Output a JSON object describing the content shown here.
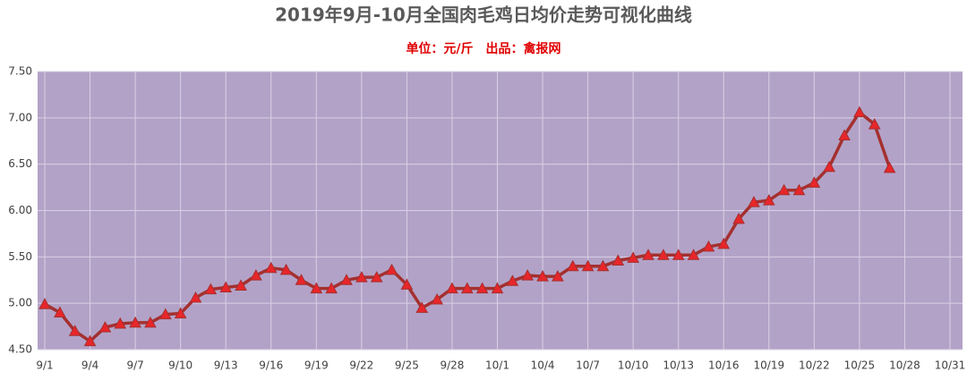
{
  "chart_data": {
    "type": "line",
    "title": "2019年9月-10月全国肉毛鸡日均价走势可视化曲线",
    "subtitle": "单位：元/斤　出品：禽报网",
    "categories": [
      "9/1",
      null,
      null,
      "9/4",
      null,
      null,
      "9/7",
      null,
      null,
      "9/10",
      null,
      null,
      "9/13",
      null,
      null,
      "9/16",
      null,
      null,
      "9/19",
      null,
      null,
      "9/22",
      null,
      null,
      "9/25",
      null,
      null,
      "9/28",
      null,
      null,
      "10/1",
      null,
      null,
      "10/4",
      null,
      null,
      "10/7",
      null,
      null,
      "10/10",
      null,
      null,
      "10/13",
      null,
      null,
      "10/16",
      null,
      null,
      "10/19",
      null,
      null,
      "10/22",
      null,
      null,
      "10/25",
      null,
      null,
      "10/28",
      null,
      null,
      "10/31"
    ],
    "series": [
      {
        "color": "#a4302f",
        "marker_color": "#e8262a",
        "values": [
          4.99,
          4.9,
          4.7,
          4.59,
          4.74,
          4.78,
          4.79,
          4.79,
          4.88,
          4.89,
          5.06,
          5.15,
          5.17,
          5.19,
          5.3,
          5.38,
          5.36,
          5.25,
          5.16,
          5.16,
          5.25,
          5.28,
          5.28,
          5.36,
          5.2,
          4.95,
          5.04,
          5.16,
          5.16,
          5.16,
          5.16,
          5.24,
          5.3,
          5.29,
          5.29,
          5.4,
          5.4,
          5.4,
          5.46,
          5.49,
          5.52,
          5.52,
          5.52,
          5.52,
          5.61,
          5.64,
          5.91,
          6.09,
          6.11,
          6.22,
          6.22,
          6.3,
          6.47,
          6.81,
          7.06,
          6.93,
          6.46,
          null,
          null,
          null,
          null
        ]
      }
    ],
    "ylim": [
      4.5,
      7.5
    ],
    "yticks": [
      {
        "value": 4.5,
        "label": "4.50"
      },
      {
        "value": 5,
        "label": "5.00"
      },
      {
        "value": 5.5,
        "label": "5.50"
      },
      {
        "value": 6,
        "label": "6.00"
      },
      {
        "value": 6.5,
        "label": "6.50"
      },
      {
        "value": 7,
        "label": "7.00"
      },
      {
        "value": 7.5,
        "label": "7.50"
      }
    ],
    "grid": true,
    "background": "#b3a2c7"
  }
}
